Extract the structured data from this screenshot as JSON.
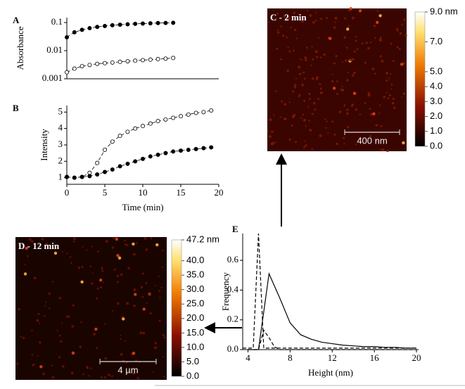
{
  "chart_data": [
    {
      "type": "scatter",
      "panel": "A",
      "ylabel": "Absorbance",
      "log_y": true,
      "xlim": [
        0,
        20
      ],
      "ylim": [
        0.001,
        0.15
      ],
      "yticks": [
        0.001,
        0.01,
        0.1
      ],
      "series": [
        {
          "marker": "filled",
          "color": "#000000",
          "x": [
            0,
            1,
            2,
            3,
            4,
            5,
            6,
            7,
            8,
            9,
            10,
            11,
            12,
            13,
            14
          ],
          "values": [
            0.03,
            0.045,
            0.055,
            0.063,
            0.07,
            0.075,
            0.08,
            0.084,
            0.087,
            0.09,
            0.092,
            0.094,
            0.096,
            0.097,
            0.098
          ]
        },
        {
          "marker": "open",
          "color": "#000000",
          "x": [
            0,
            1,
            2,
            3,
            4,
            5,
            6,
            7,
            8,
            9,
            10,
            11,
            12,
            13,
            14
          ],
          "values": [
            0.0017,
            0.0023,
            0.0028,
            0.0031,
            0.0034,
            0.0036,
            0.0038,
            0.004,
            0.0042,
            0.0044,
            0.0046,
            0.0048,
            0.005,
            0.0052,
            0.0055
          ]
        }
      ]
    },
    {
      "type": "scatter",
      "panel": "B",
      "ylabel": "Intensity",
      "xlabel": "Time (min)",
      "xlim": [
        0,
        20
      ],
      "xticks": [
        0,
        5,
        10,
        15,
        20
      ],
      "ylim": [
        0.6,
        5.4
      ],
      "yticks": [
        1,
        2,
        3,
        4,
        5
      ],
      "series": [
        {
          "marker": "open",
          "color": "#000000",
          "x": [
            0,
            1,
            2,
            3,
            4,
            5,
            6,
            7,
            8,
            9,
            10,
            11,
            12,
            13,
            14,
            15,
            16,
            17,
            18,
            19
          ],
          "values": [
            1.05,
            1.0,
            1.05,
            1.3,
            1.9,
            2.7,
            3.2,
            3.55,
            3.8,
            4.0,
            4.15,
            4.3,
            4.45,
            4.55,
            4.65,
            4.75,
            4.85,
            4.95,
            5.0,
            5.1
          ]
        },
        {
          "marker": "filled",
          "color": "#000000",
          "x": [
            0,
            1,
            2,
            3,
            4,
            5,
            6,
            7,
            8,
            9,
            10,
            11,
            12,
            13,
            14,
            15,
            16,
            17,
            18,
            19
          ],
          "values": [
            1.05,
            1.0,
            1.05,
            1.1,
            1.2,
            1.35,
            1.5,
            1.7,
            1.85,
            2.0,
            2.15,
            2.3,
            2.4,
            2.5,
            2.6,
            2.65,
            2.7,
            2.75,
            2.8,
            2.85
          ]
        }
      ]
    },
    {
      "type": "image",
      "title": "C - 2 min",
      "scalebar": "400 nm",
      "colorbar": {
        "lim": [
          0,
          9
        ],
        "ticks": [
          {
            "value": 0,
            "label": "0.0"
          },
          {
            "value": 1,
            "label": "1.0"
          },
          {
            "value": 2,
            "label": "2.0"
          },
          {
            "value": 3,
            "label": "3.0"
          },
          {
            "value": 4,
            "label": "4.0"
          },
          {
            "value": 5,
            "label": "5.0"
          },
          {
            "value": 7,
            "label": "7.0"
          },
          {
            "value": 9,
            "label": "9.0 nm"
          }
        ]
      }
    },
    {
      "type": "image",
      "title": "D - 12 min",
      "scalebar": "4 µm",
      "colorbar": {
        "lim": [
          0,
          47.2
        ],
        "ticks": [
          {
            "value": 0,
            "label": "0.0"
          },
          {
            "value": 5,
            "label": "5.0"
          },
          {
            "value": 10,
            "label": "10.0"
          },
          {
            "value": 15,
            "label": "15.0"
          },
          {
            "value": 20,
            "label": "20.0"
          },
          {
            "value": 25,
            "label": "25.0"
          },
          {
            "value": 30,
            "label": "30.0"
          },
          {
            "value": 35,
            "label": "35.0"
          },
          {
            "value": 40,
            "label": "40.0"
          },
          {
            "value": 47.2,
            "label": "47.2 nm"
          }
        ]
      }
    },
    {
      "type": "line",
      "panel": "E",
      "ylabel": "Frequency",
      "xlabel": "Height (nm)",
      "xlim": [
        3.5,
        20.2
      ],
      "xticks": [
        4,
        8,
        12,
        16,
        20
      ],
      "ylim": [
        0,
        0.78
      ],
      "yticks": [
        {
          "value": 0,
          "label": "0.0"
        },
        {
          "value": 0.2,
          "label": "0.2"
        },
        {
          "value": 0.4,
          "label": "0.4"
        },
        {
          "value": 0.6,
          "label": "0.6"
        }
      ],
      "series": [
        {
          "dash": false,
          "color": "#000000",
          "x": [
            4,
            5,
            6,
            7,
            8,
            9,
            10,
            11,
            12,
            13,
            14,
            15,
            16,
            17,
            18,
            19,
            20
          ],
          "values": [
            0,
            0,
            0.51,
            0.35,
            0.18,
            0.1,
            0.07,
            0.05,
            0.04,
            0.03,
            0.025,
            0.02,
            0.02,
            0.015,
            0.015,
            0.01,
            0.01
          ]
        },
        {
          "dash": true,
          "color": "#000000",
          "x": [
            3.5,
            4.5,
            5,
            5.5,
            6,
            8,
            20
          ],
          "values": [
            0.01,
            0.01,
            0.78,
            0.01,
            0.01,
            0.01,
            0.01
          ]
        },
        {
          "dash": true,
          "color": "#000000",
          "x": [
            4,
            5,
            5.5,
            6,
            6.5,
            7,
            8,
            20
          ],
          "values": [
            0,
            0,
            0.13,
            0.08,
            0.02,
            0,
            0,
            0
          ]
        }
      ]
    }
  ]
}
